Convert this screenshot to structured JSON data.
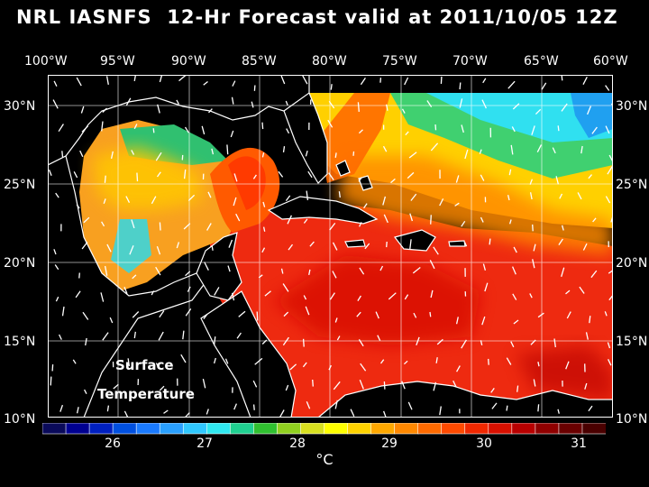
{
  "title": "NRL IASNFS  12-Hr Forecast valid at 2011/10/05 12Z",
  "longitude_labels": [
    "100°W",
    "95°W",
    "90°W",
    "85°W",
    "80°W",
    "75°W",
    "70°W",
    "65°W",
    "60°W"
  ],
  "latitude_labels": [
    "30°N",
    "25°N",
    "20°N",
    "15°N",
    "10°N"
  ],
  "annotation": {
    "line1": "Surface",
    "line2": "Temperature"
  },
  "colorbar": {
    "tick_labels": [
      "26",
      "27",
      "28",
      "29",
      "30",
      "31"
    ],
    "unit": "°C",
    "colors": [
      "#0a0a5a",
      "#000090",
      "#0020c0",
      "#0050e0",
      "#1a7aff",
      "#2aa0ff",
      "#30c8ff",
      "#30e8f0",
      "#20d090",
      "#30c030",
      "#90d020",
      "#d8e020",
      "#ffff00",
      "#ffd200",
      "#ffa800",
      "#ff8800",
      "#ff6a00",
      "#ff4a00",
      "#f02800",
      "#d81000",
      "#b80000",
      "#900000",
      "#6a0000",
      "#4a0000"
    ]
  },
  "colors": {
    "background": "#000000",
    "land": "#000000",
    "coast": "#ffffff",
    "grid": "#ffffff"
  }
}
